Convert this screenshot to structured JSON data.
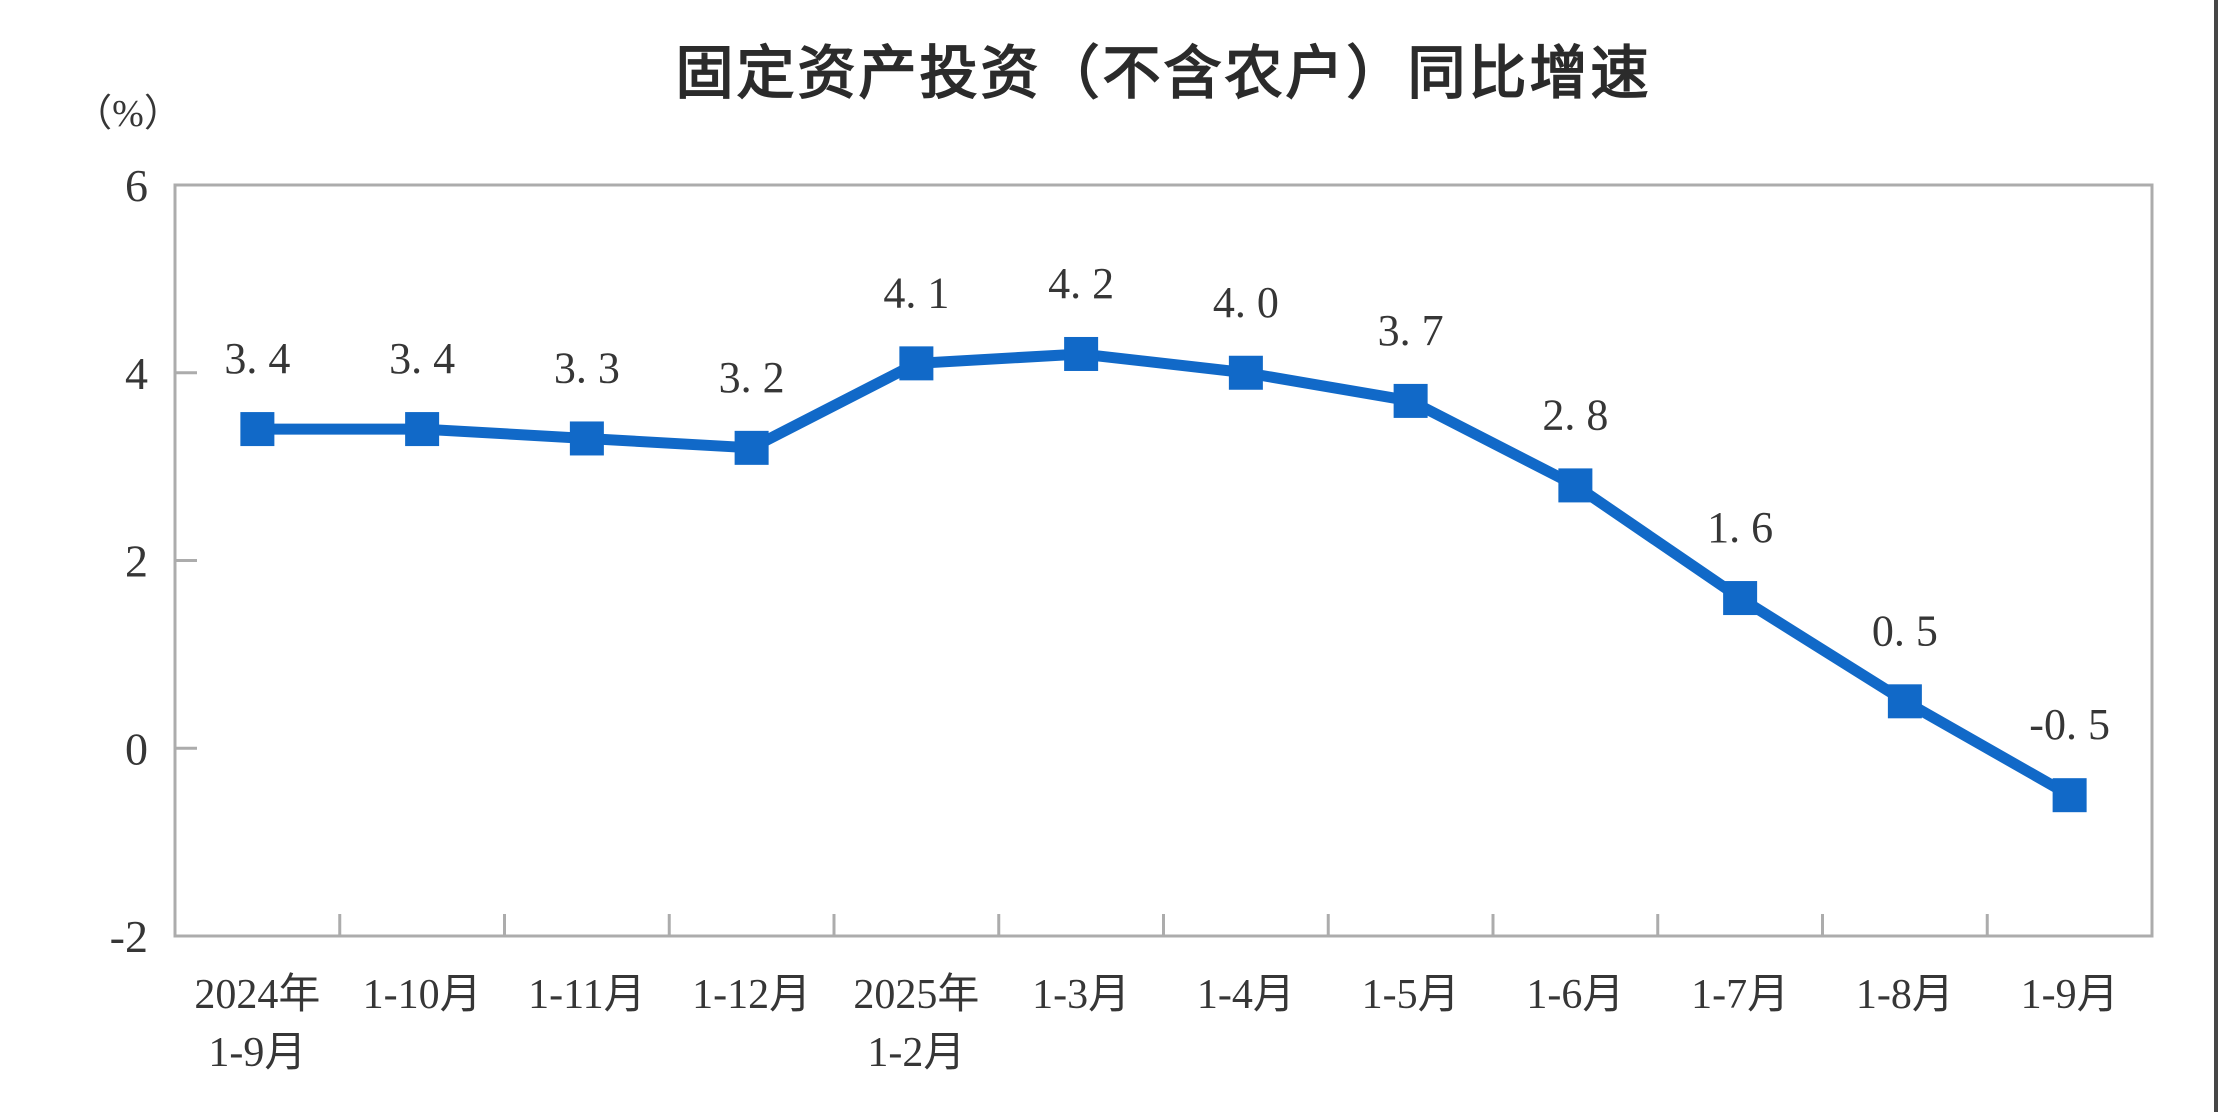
{
  "page": {
    "title": "固定资产投资（不含农户）同比增速",
    "unit_label": "（%）"
  },
  "colors": {
    "line": "#1169C8",
    "marker": "#1169C8",
    "frame": "#ACACAC",
    "text": "#363636",
    "title_text": "#2B2B2B",
    "background": "#FFFFFF",
    "window_edge": "#464646"
  },
  "chart_data": {
    "type": "line",
    "title": "固定资产投资（不含农户）同比增速",
    "ylabel": "（%）",
    "categories": [
      [
        "2024年",
        "1-9月"
      ],
      [
        "1-10月"
      ],
      [
        "1-11月"
      ],
      [
        "1-12月"
      ],
      [
        "2025年",
        "1-2月"
      ],
      [
        "1-3月"
      ],
      [
        "1-4月"
      ],
      [
        "1-5月"
      ],
      [
        "1-6月"
      ],
      [
        "1-7月"
      ],
      [
        "1-8月"
      ],
      [
        "1-9月"
      ]
    ],
    "values": [
      3.4,
      3.4,
      3.3,
      3.2,
      4.1,
      4.2,
      4.0,
      3.7,
      2.8,
      1.6,
      0.5,
      -0.5
    ],
    "ylim": [
      -2,
      6
    ],
    "yticks": [
      6,
      4,
      2,
      0,
      -2
    ],
    "grid": false,
    "legend_position": "none",
    "marker": "square",
    "label_decimal_style": "spaced"
  }
}
